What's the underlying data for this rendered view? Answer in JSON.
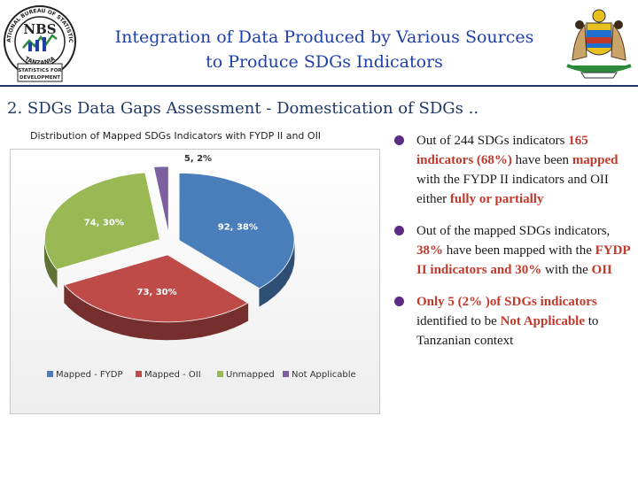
{
  "header": {
    "title_line1": "Integration of Data Produced by Various Sources",
    "title_line2": "to Produce SDGs Indicators",
    "left_logo": {
      "ring_top": "NATIONAL BUREAU OF STATISTICS",
      "ring_bottom": "TANZANIA",
      "monogram": "NBS",
      "banner1": "STATISTICS FOR",
      "banner2": "DEVELOPMENT"
    },
    "right_logo": {
      "icon": "coat-of-arms-icon"
    }
  },
  "section_title": "2. SDGs Data Gaps Assessment - Domestication of SDGs ..",
  "chart_caption": "Distribution of Mapped SDGs Indicators with FYDP II and OII",
  "chart_data": {
    "type": "pie",
    "title": "Distribution of Mapped SDGs Indicators with FYDP II and OII",
    "slices": [
      {
        "name": "Mapped - FYDP",
        "value": 92,
        "percent": 38,
        "label": "92, 38%",
        "color": "#4a7ebb"
      },
      {
        "name": "Mapped - OII",
        "value": 73,
        "percent": 30,
        "label": "73, 30%",
        "color": "#be4b48"
      },
      {
        "name": "Unmapped",
        "value": 74,
        "percent": 30,
        "label": "74, 30%",
        "color": "#98b954"
      },
      {
        "name": "Not Applicable",
        "value": 5,
        "percent": 2,
        "label": "5, 2%",
        "color": "#7d60a0"
      }
    ],
    "legend": [
      "Mapped - FYDP",
      "Mapped - OII",
      "Unmapped",
      "Not Applicable"
    ],
    "legend_position": "bottom"
  },
  "bullets": [
    {
      "parts": [
        {
          "text": "Out of 244 SDGs indicators ",
          "hl": false
        },
        {
          "text": "165 indicators (68%)",
          "hl": true
        },
        {
          "text": " have been ",
          "hl": false
        },
        {
          "text": "mapped",
          "hl": true
        },
        {
          "text": " with the  FYDP II indicators and OII either ",
          "hl": false
        },
        {
          "text": "fully or partially",
          "hl": true
        }
      ]
    },
    {
      "parts": [
        {
          "text": "Out of the mapped SDGs indicators, ",
          "hl": false
        },
        {
          "text": "38%",
          "hl": true
        },
        {
          "text": " have been mapped with the ",
          "hl": false
        },
        {
          "text": "FYDP II indicators and 30%",
          "hl": true
        },
        {
          "text": " with the ",
          "hl": false
        },
        {
          "text": "OII",
          "hl": true
        }
      ]
    },
    {
      "parts": [
        {
          "text": "Only 5 (2% )of SDGs indicators",
          "hl": true
        },
        {
          "text": " identified to be ",
          "hl": false
        },
        {
          "text": "Not Applicable",
          "hl": true
        },
        {
          "text": " to Tanzanian context",
          "hl": false
        }
      ]
    }
  ],
  "colors": {
    "title": "#1f3fa8",
    "highlight": "#c0392b",
    "bullet_dot": "#5b2b86"
  }
}
